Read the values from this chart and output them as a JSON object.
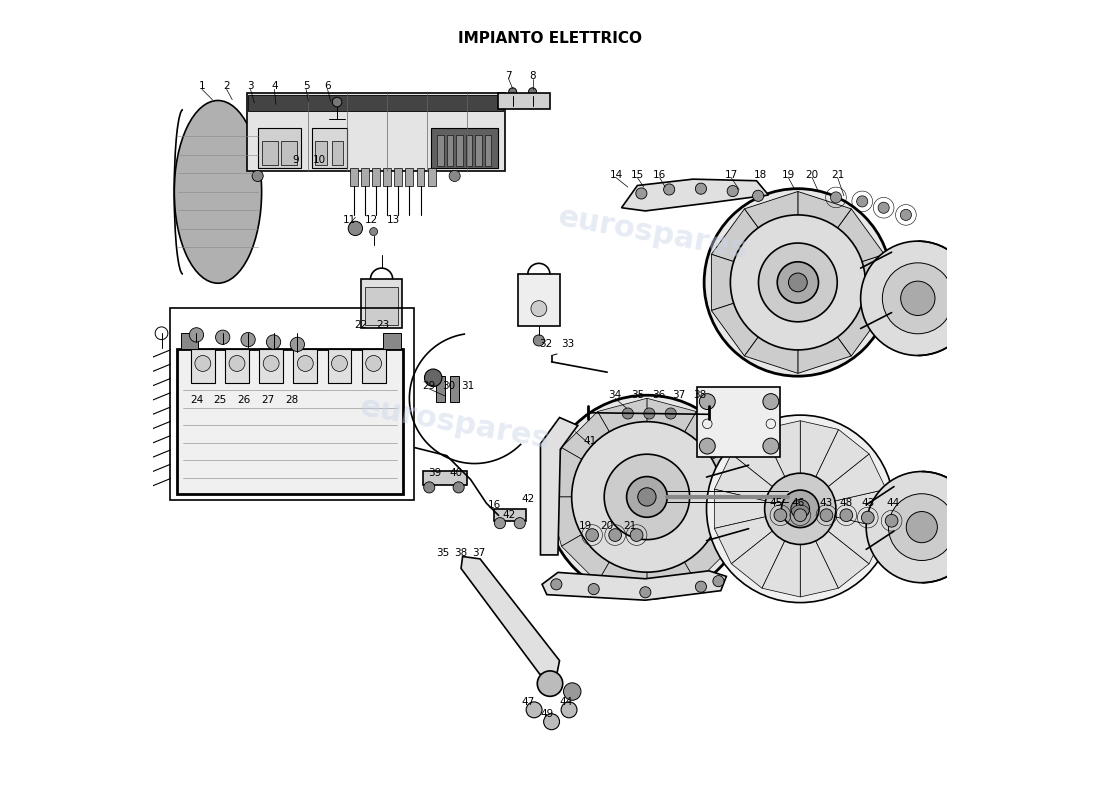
{
  "title": "IMPIANTO ELETTRICO",
  "title_fontsize": 11,
  "title_fontweight": "bold",
  "bg_color": "#ffffff",
  "watermark_text": "eurospares",
  "watermark_color": "#c8d4e8",
  "watermark_alpha": 0.45,
  "figsize": [
    11.0,
    8.0
  ],
  "dpi": 100
}
